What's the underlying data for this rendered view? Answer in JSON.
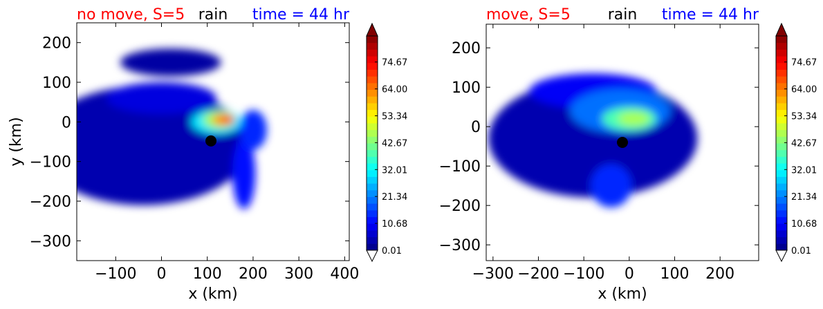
{
  "colors": {
    "title_left": "#ff0000",
    "title_center": "#000000",
    "title_right": "#0000ff",
    "marker": "#000000"
  },
  "chart_data": [
    {
      "type": "contourf",
      "title": {
        "left": "no move, S=5",
        "center": "rain",
        "right": "time = 44 hr"
      },
      "xlabel": "x (km)",
      "ylabel": "y (km)",
      "xlim": [
        -185,
        410
      ],
      "ylim": [
        -350,
        250
      ],
      "xticks": [
        -100,
        0,
        100,
        200,
        300,
        400
      ],
      "xticklabels": [
        "−100",
        "0",
        "100",
        "200",
        "300",
        "400"
      ],
      "yticks": [
        200,
        100,
        0,
        -100,
        -200,
        -300
      ],
      "yticklabels": [
        "200",
        "100",
        "0",
        "−100",
        "−200",
        "−300"
      ],
      "marker": {
        "x": 108,
        "y": -48
      },
      "colorbar": {
        "min": 0.01,
        "max": 85,
        "extend": "both",
        "ticks": [
          0.01,
          10.68,
          21.34,
          32.01,
          42.67,
          53.34,
          64.0,
          74.67
        ],
        "ticklabels": [
          "0.01",
          "10.68",
          "21.34",
          "32.01",
          "42.67",
          "53.34",
          "64.00",
          "74.67"
        ]
      },
      "field": [
        {
          "x": -40,
          "y": -60,
          "rx": 230,
          "ry": 150,
          "level": 4
        },
        {
          "x": 20,
          "y": 150,
          "rx": 110,
          "ry": 35,
          "level": 3
        },
        {
          "x": 0,
          "y": 60,
          "rx": 120,
          "ry": 40,
          "level": 8
        },
        {
          "x": 180,
          "y": -130,
          "rx": 25,
          "ry": 90,
          "level": 12
        },
        {
          "x": 200,
          "y": -20,
          "rx": 30,
          "ry": 50,
          "level": 14
        },
        {
          "x": 120,
          "y": 0,
          "rx": 55,
          "ry": 30,
          "level": 30
        },
        {
          "x": 125,
          "y": 5,
          "rx": 35,
          "ry": 22,
          "level": 45
        },
        {
          "x": 135,
          "y": 5,
          "rx": 25,
          "ry": 14,
          "level": 62
        },
        {
          "x": 145,
          "y": 5,
          "rx": 15,
          "ry": 9,
          "level": 70
        }
      ]
    },
    {
      "type": "contourf",
      "title": {
        "left": "move, S=5",
        "center": "rain",
        "right": "time = 44 hr"
      },
      "xlabel": "x (km)",
      "ylabel": "",
      "xlim": [
        -315,
        285
      ],
      "ylim": [
        -340,
        260
      ],
      "xticks": [
        -300,
        -200,
        -100,
        0,
        100,
        200
      ],
      "xticklabels": [
        "−300",
        "−200",
        "−100",
        "0",
        "100",
        "200"
      ],
      "yticks": [
        200,
        100,
        0,
        -100,
        -200,
        -300
      ],
      "yticklabels": [
        "200",
        "100",
        "0",
        "−100",
        "−200",
        "−300"
      ],
      "marker": {
        "x": -15,
        "y": -40
      },
      "colorbar": {
        "min": 0.01,
        "max": 85,
        "extend": "both",
        "ticks": [
          0.01,
          10.68,
          21.34,
          32.01,
          42.67,
          53.34,
          64.0,
          74.67
        ],
        "ticklabels": [
          "0.01",
          "10.68",
          "21.34",
          "32.01",
          "42.67",
          "53.34",
          "64.00",
          "74.67"
        ]
      },
      "field": [
        {
          "x": -80,
          "y": -30,
          "rx": 230,
          "ry": 150,
          "level": 4
        },
        {
          "x": -80,
          "y": 90,
          "rx": 140,
          "ry": 45,
          "level": 10
        },
        {
          "x": -40,
          "y": -150,
          "rx": 45,
          "ry": 55,
          "level": 14
        },
        {
          "x": -20,
          "y": 40,
          "rx": 110,
          "ry": 55,
          "level": 20
        },
        {
          "x": 0,
          "y": 20,
          "rx": 60,
          "ry": 30,
          "level": 38
        },
        {
          "x": 10,
          "y": 20,
          "rx": 35,
          "ry": 18,
          "level": 46
        }
      ]
    }
  ]
}
